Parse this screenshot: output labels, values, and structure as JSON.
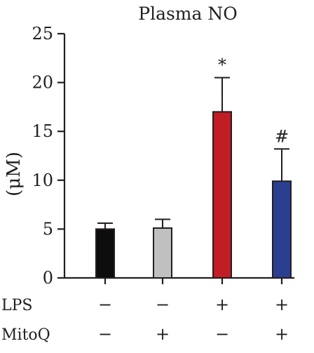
{
  "chart_data": {
    "type": "bar",
    "title": "Plasma NO",
    "ylabel": "(μM)",
    "xlabel": "",
    "ylim": [
      0,
      25
    ],
    "yticks": [
      0,
      5,
      10,
      15,
      20,
      25
    ],
    "categories": [
      "LPS − / MitoQ −",
      "LPS − / MitoQ +",
      "LPS + / MitoQ −",
      "LPS + / MitoQ +"
    ],
    "values": [
      5.0,
      5.1,
      17.0,
      9.9
    ],
    "errors": [
      0.6,
      0.9,
      3.5,
      3.3
    ],
    "colors": [
      "#0d0d0d",
      "#bfc1c1",
      "#c01d25",
      "#2b3f91"
    ],
    "annotations": [
      "",
      "",
      "*",
      "#"
    ],
    "treatment_rows": [
      {
        "label": "LPS",
        "signs": [
          "−",
          "−",
          "+",
          "+"
        ]
      },
      {
        "label": "MitoQ",
        "signs": [
          "−",
          "+",
          "−",
          "+"
        ]
      }
    ],
    "grid": false,
    "legend": "none"
  }
}
